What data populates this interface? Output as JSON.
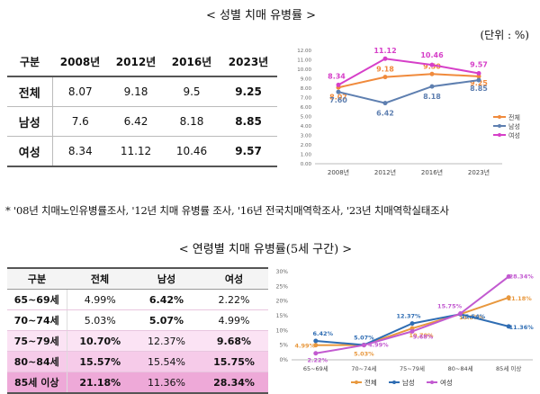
{
  "section1": {
    "title": "< 성별 치매 유병률 >",
    "unit": "(단위 : %)",
    "table": {
      "headers": [
        "구분",
        "2008년",
        "2012년",
        "2016년",
        "2023년"
      ],
      "rows": [
        {
          "label": "전체",
          "values": [
            "8.07",
            "9.18",
            "9.5",
            "9.25"
          ]
        },
        {
          "label": "남성",
          "values": [
            "7.6",
            "6.42",
            "8.18",
            "8.85"
          ]
        },
        {
          "label": "여성",
          "values": [
            "8.34",
            "11.12",
            "10.46",
            "9.57"
          ]
        }
      ]
    }
  },
  "note": "* '08년 치매노인유병률조사, '12년 치매 유병률 조사, '16년 전국치매역학조사, '23년 치매역학실태조사",
  "section2": {
    "title": "< 연령별 치매 유병률(5세 구간) >",
    "table": {
      "headers": [
        "구분",
        "전체",
        "남성",
        "여성"
      ],
      "rows": [
        {
          "label": "65~69세",
          "values": [
            "4.99%",
            "6.42%",
            "2.22%"
          ]
        },
        {
          "label": "70~74세",
          "values": [
            "5.03%",
            "5.07%",
            "4.99%"
          ]
        },
        {
          "label": "75~79세",
          "values": [
            "10.70%",
            "12.37%",
            "9.68%"
          ]
        },
        {
          "label": "80~84세",
          "values": [
            "15.57%",
            "15.54%",
            "15.75%"
          ]
        },
        {
          "label": "85세 이상",
          "values": [
            "21.18%",
            "11.36%",
            "28.34%"
          ]
        }
      ]
    }
  },
  "chart_data": [
    {
      "type": "line",
      "categories": [
        "2008년",
        "2012년",
        "2016년",
        "2023년"
      ],
      "ylim": [
        0,
        12
      ],
      "yticks": [
        "0.00",
        "1.00",
        "2.00",
        "3.00",
        "4.00",
        "5.00",
        "6.00",
        "7.00",
        "8.00",
        "9.00",
        "10.00",
        "11.00",
        "12.00"
      ],
      "grid": false,
      "legend": "right",
      "series": [
        {
          "name": "전체",
          "color": "#f08a3c",
          "values": [
            8.07,
            9.18,
            9.5,
            9.25
          ],
          "labels": [
            "8.07",
            "9.18",
            "9.50",
            "9.25"
          ]
        },
        {
          "name": "남성",
          "color": "#5e7fb0",
          "values": [
            7.6,
            6.42,
            8.18,
            8.85
          ],
          "labels": [
            "7.60",
            "6.42",
            "8.18",
            "8.85"
          ]
        },
        {
          "name": "여성",
          "color": "#d63fc8",
          "values": [
            8.34,
            11.12,
            10.46,
            9.57
          ],
          "labels": [
            "8.34",
            "11.12",
            "10.46",
            "9.57"
          ]
        }
      ]
    },
    {
      "type": "line",
      "categories": [
        "65~69세",
        "70~74세",
        "75~79세",
        "80~84세",
        "85세 이상"
      ],
      "ylim": [
        0,
        30
      ],
      "yticks": [
        "0%",
        "5%",
        "10%",
        "15%",
        "20%",
        "25%",
        "30%"
      ],
      "grid": false,
      "legend": "bottom",
      "series": [
        {
          "name": "전체",
          "color": "#e8983e",
          "values": [
            4.99,
            5.03,
            10.7,
            15.57,
            21.18
          ],
          "labels": [
            "4.99%",
            "5.03%",
            "10.70%",
            "15.57%",
            "21.18%"
          ]
        },
        {
          "name": "남성",
          "color": "#2f6db3",
          "values": [
            6.42,
            5.07,
            12.37,
            15.54,
            11.36
          ],
          "labels": [
            "6.42%",
            "5.07%",
            "12.37%",
            "15.54%",
            "11.36%"
          ]
        },
        {
          "name": "여성",
          "color": "#c25ad0",
          "values": [
            2.22,
            4.99,
            9.68,
            15.75,
            28.34
          ],
          "labels": [
            "2.22%",
            "4.99%",
            "9.68%",
            "15.75%",
            "28.34%"
          ]
        }
      ]
    }
  ]
}
